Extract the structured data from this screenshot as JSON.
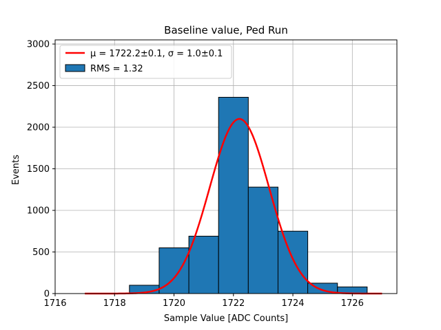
{
  "chart_data": {
    "type": "bar",
    "title": "Baseline value, Ped Run",
    "xlabel": "Sample Value [ADC Counts]",
    "ylabel": "Events",
    "xlim": [
      1716,
      1727.5
    ],
    "ylim": [
      0,
      3050
    ],
    "xticks": [
      1716,
      1718,
      1720,
      1722,
      1724,
      1726
    ],
    "yticks": [
      0,
      500,
      1000,
      1500,
      2000,
      2500,
      3000
    ],
    "grid": true,
    "legend_position": "top-left",
    "histogram": {
      "name": "RMS = 1.32",
      "color": "#1f77b4",
      "bins": [
        {
          "left": 1718.5,
          "right": 1719.5,
          "count": 100
        },
        {
          "left": 1719.5,
          "right": 1720.5,
          "count": 550
        },
        {
          "left": 1720.5,
          "right": 1721.5,
          "count": 690
        },
        {
          "left": 1721.5,
          "right": 1722.5,
          "count": 2360
        },
        {
          "left": 1722.5,
          "right": 1723.5,
          "count": 1280
        },
        {
          "left": 1723.5,
          "right": 1724.5,
          "count": 750
        },
        {
          "left": 1724.5,
          "right": 1725.5,
          "count": 125
        },
        {
          "left": 1725.5,
          "right": 1726.5,
          "count": 80
        }
      ]
    },
    "fit": {
      "name": "μ = 1722.2±0.1, σ = 1.0±0.1",
      "color": "#ff0000",
      "type": "gaussian",
      "mu": 1722.2,
      "sigma": 1.0,
      "amplitude": 2100,
      "x_range": [
        1717,
        1727
      ]
    }
  }
}
